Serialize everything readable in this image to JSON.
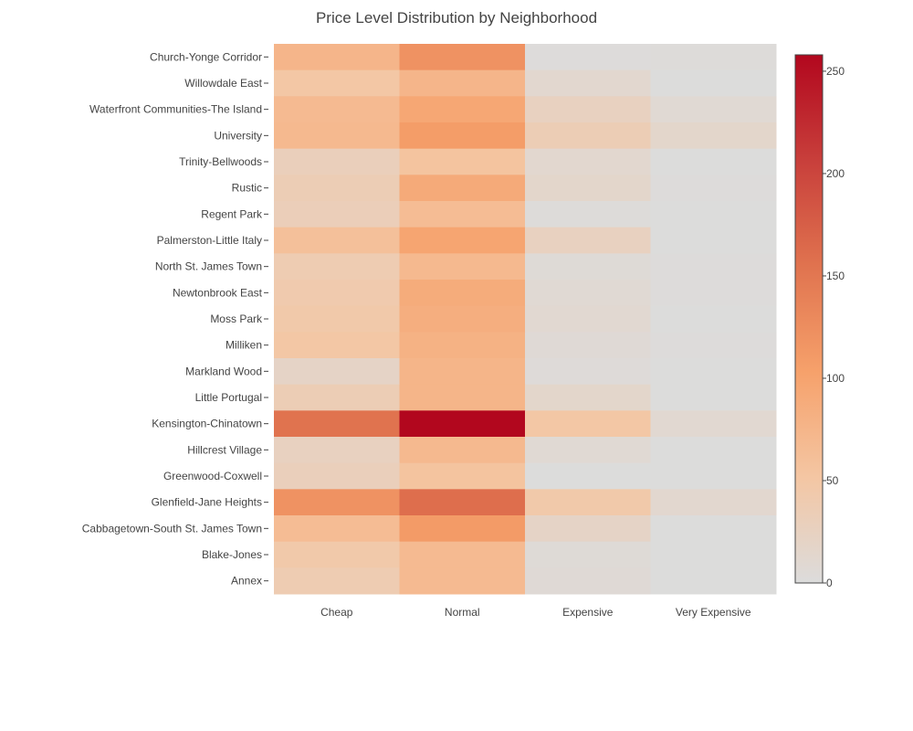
{
  "chart_data": {
    "type": "heatmap",
    "title": "Price Level Distribution by Neighborhood",
    "xlabel": "",
    "ylabel": "",
    "x_categories": [
      "Cheap",
      "Normal",
      "Expensive",
      "Very Expensive"
    ],
    "y_categories": [
      "Church-Yonge Corridor",
      "Willowdale East",
      "Waterfront Communities-The Island",
      "University",
      "Trinity-Bellwoods",
      "Rustic",
      "Regent Park",
      "Palmerston-Little Italy",
      "North St. James Town",
      "Newtonbrook East",
      "Moss Park",
      "Milliken",
      "Markland Wood",
      "Little Portugal",
      "Kensington-Chinatown",
      "Hillcrest Village",
      "Greenwood-Coxwell",
      "Glenfield-Jane Heights",
      "Cabbagetown-South St. James Town",
      "Blake-Jones",
      "Annex"
    ],
    "values": [
      [
        75,
        120,
        2,
        3
      ],
      [
        50,
        75,
        12,
        1
      ],
      [
        68,
        95,
        25,
        8
      ],
      [
        70,
        108,
        35,
        15
      ],
      [
        30,
        55,
        12,
        1
      ],
      [
        35,
        90,
        15,
        2
      ],
      [
        32,
        65,
        3,
        1
      ],
      [
        60,
        98,
        25,
        1
      ],
      [
        38,
        70,
        5,
        2
      ],
      [
        42,
        88,
        8,
        2
      ],
      [
        45,
        85,
        10,
        1
      ],
      [
        50,
        80,
        6,
        2
      ],
      [
        20,
        76,
        4,
        1
      ],
      [
        35,
        76,
        15,
        1
      ],
      [
        155,
        258,
        50,
        10
      ],
      [
        25,
        70,
        8,
        1
      ],
      [
        30,
        55,
        1,
        1
      ],
      [
        120,
        160,
        45,
        12
      ],
      [
        65,
        110,
        20,
        1
      ],
      [
        45,
        68,
        5,
        1
      ],
      [
        38,
        68,
        6,
        1
      ]
    ],
    "zrange": [
      0,
      258
    ],
    "colorscale": [
      [
        0.0,
        "#dcdcdc"
      ],
      [
        0.2,
        "#f4c6a3"
      ],
      [
        0.4,
        "#f6a16b"
      ],
      [
        0.6,
        "#e0734f"
      ],
      [
        0.8,
        "#c83f3b"
      ],
      [
        1.0,
        "#b2071e"
      ]
    ],
    "colorbar": {
      "ticks": [
        0,
        50,
        100,
        150,
        200,
        250
      ]
    },
    "grid": false,
    "legend_position": "right"
  }
}
